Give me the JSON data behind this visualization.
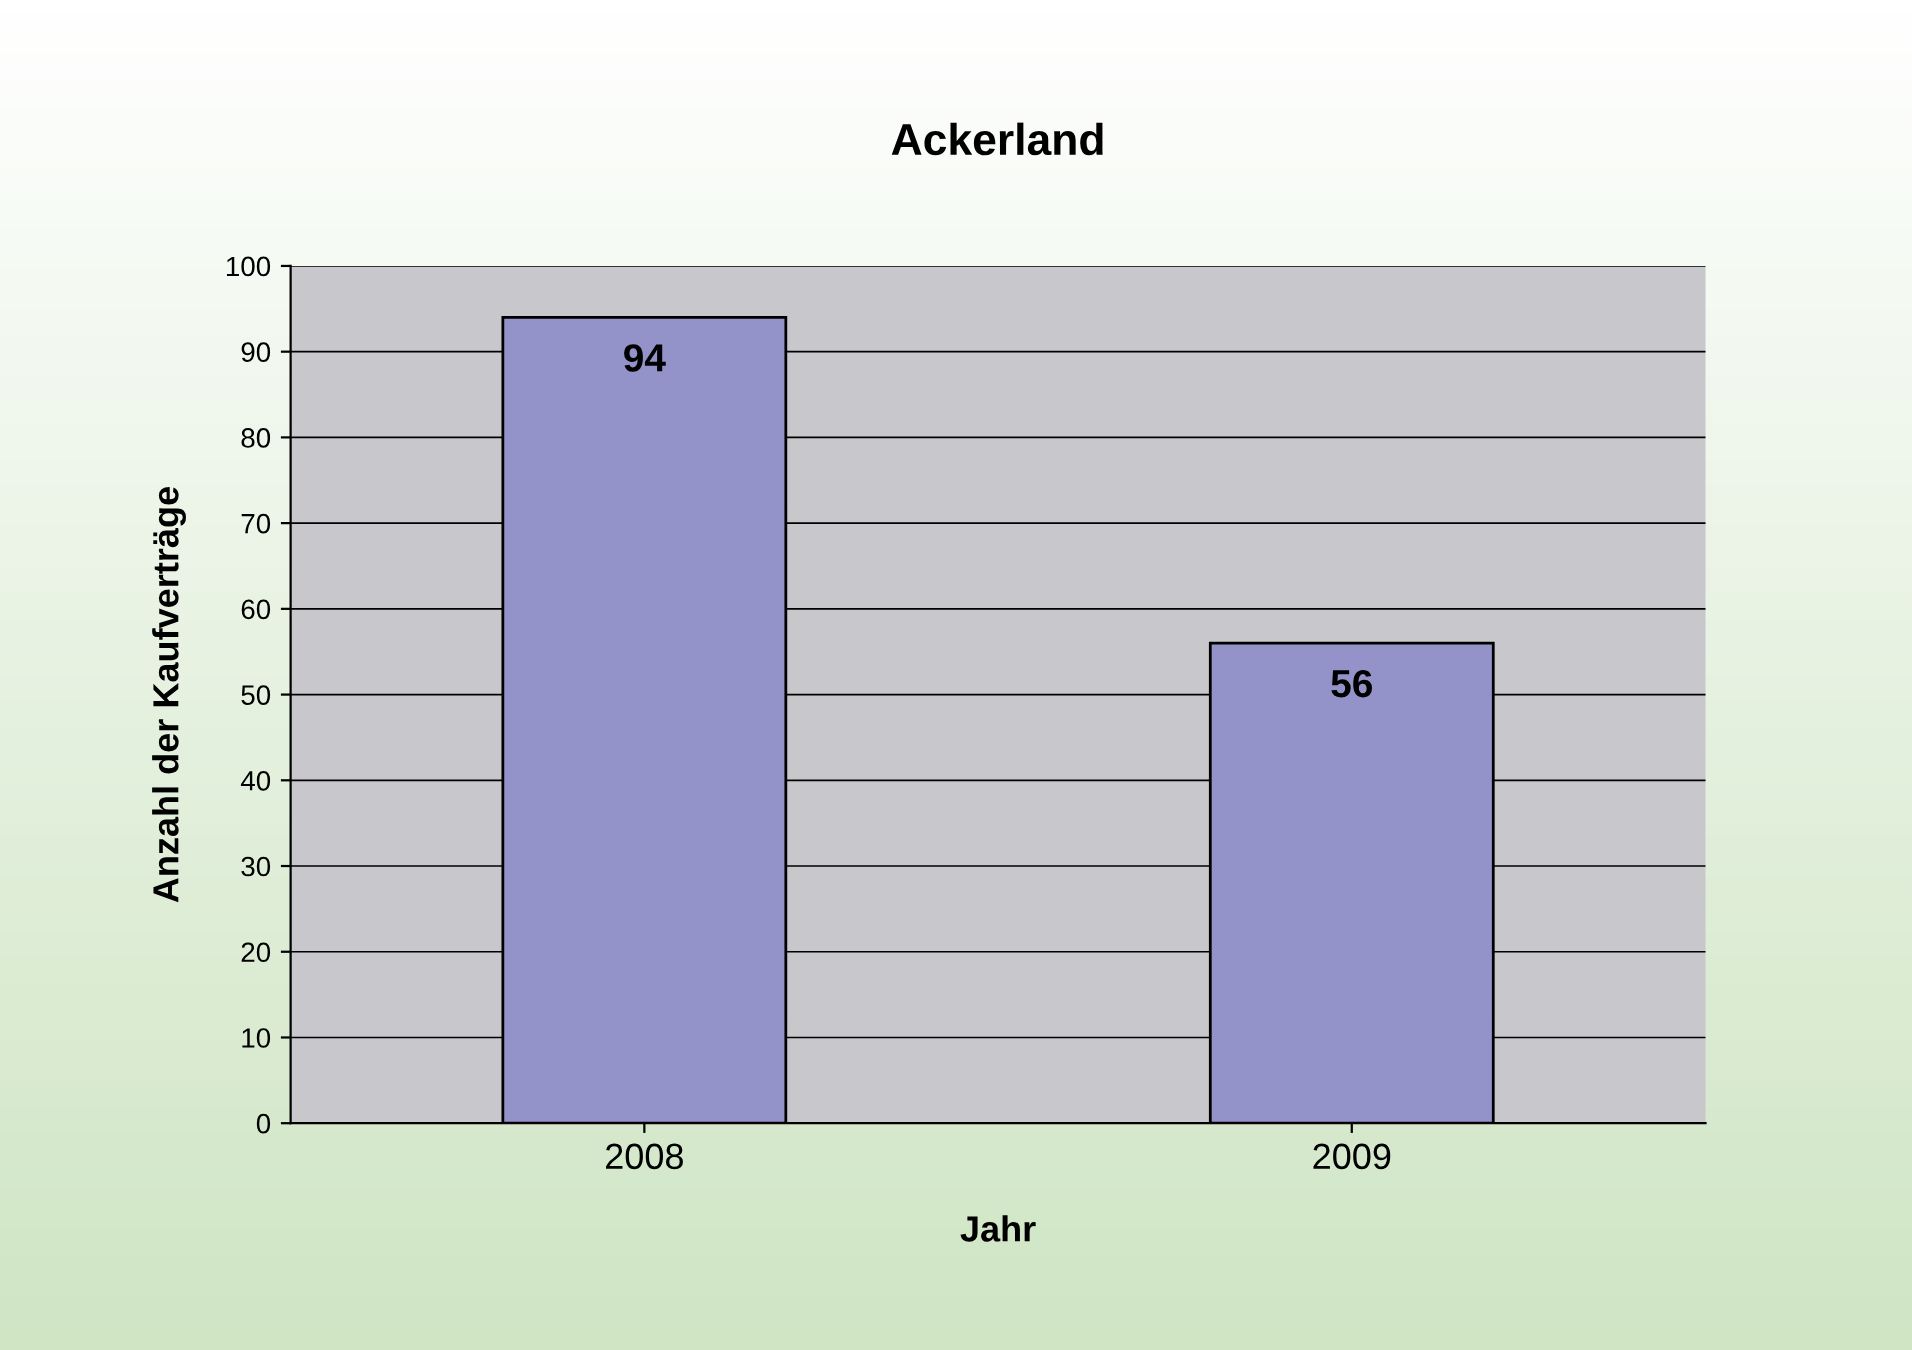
{
  "chart_data": {
    "type": "bar",
    "title": "Ackerland",
    "xlabel": "Jahr",
    "ylabel": "Anzahl der Kaufverträge",
    "categories": [
      "2008",
      "2009"
    ],
    "values": [
      94,
      56
    ],
    "color": "#9393c9",
    "ylim": [
      0,
      100
    ],
    "yticks": [
      0,
      10,
      20,
      30,
      40,
      50,
      60,
      70,
      80,
      90,
      100
    ],
    "grid": "y",
    "data_labels": true
  }
}
